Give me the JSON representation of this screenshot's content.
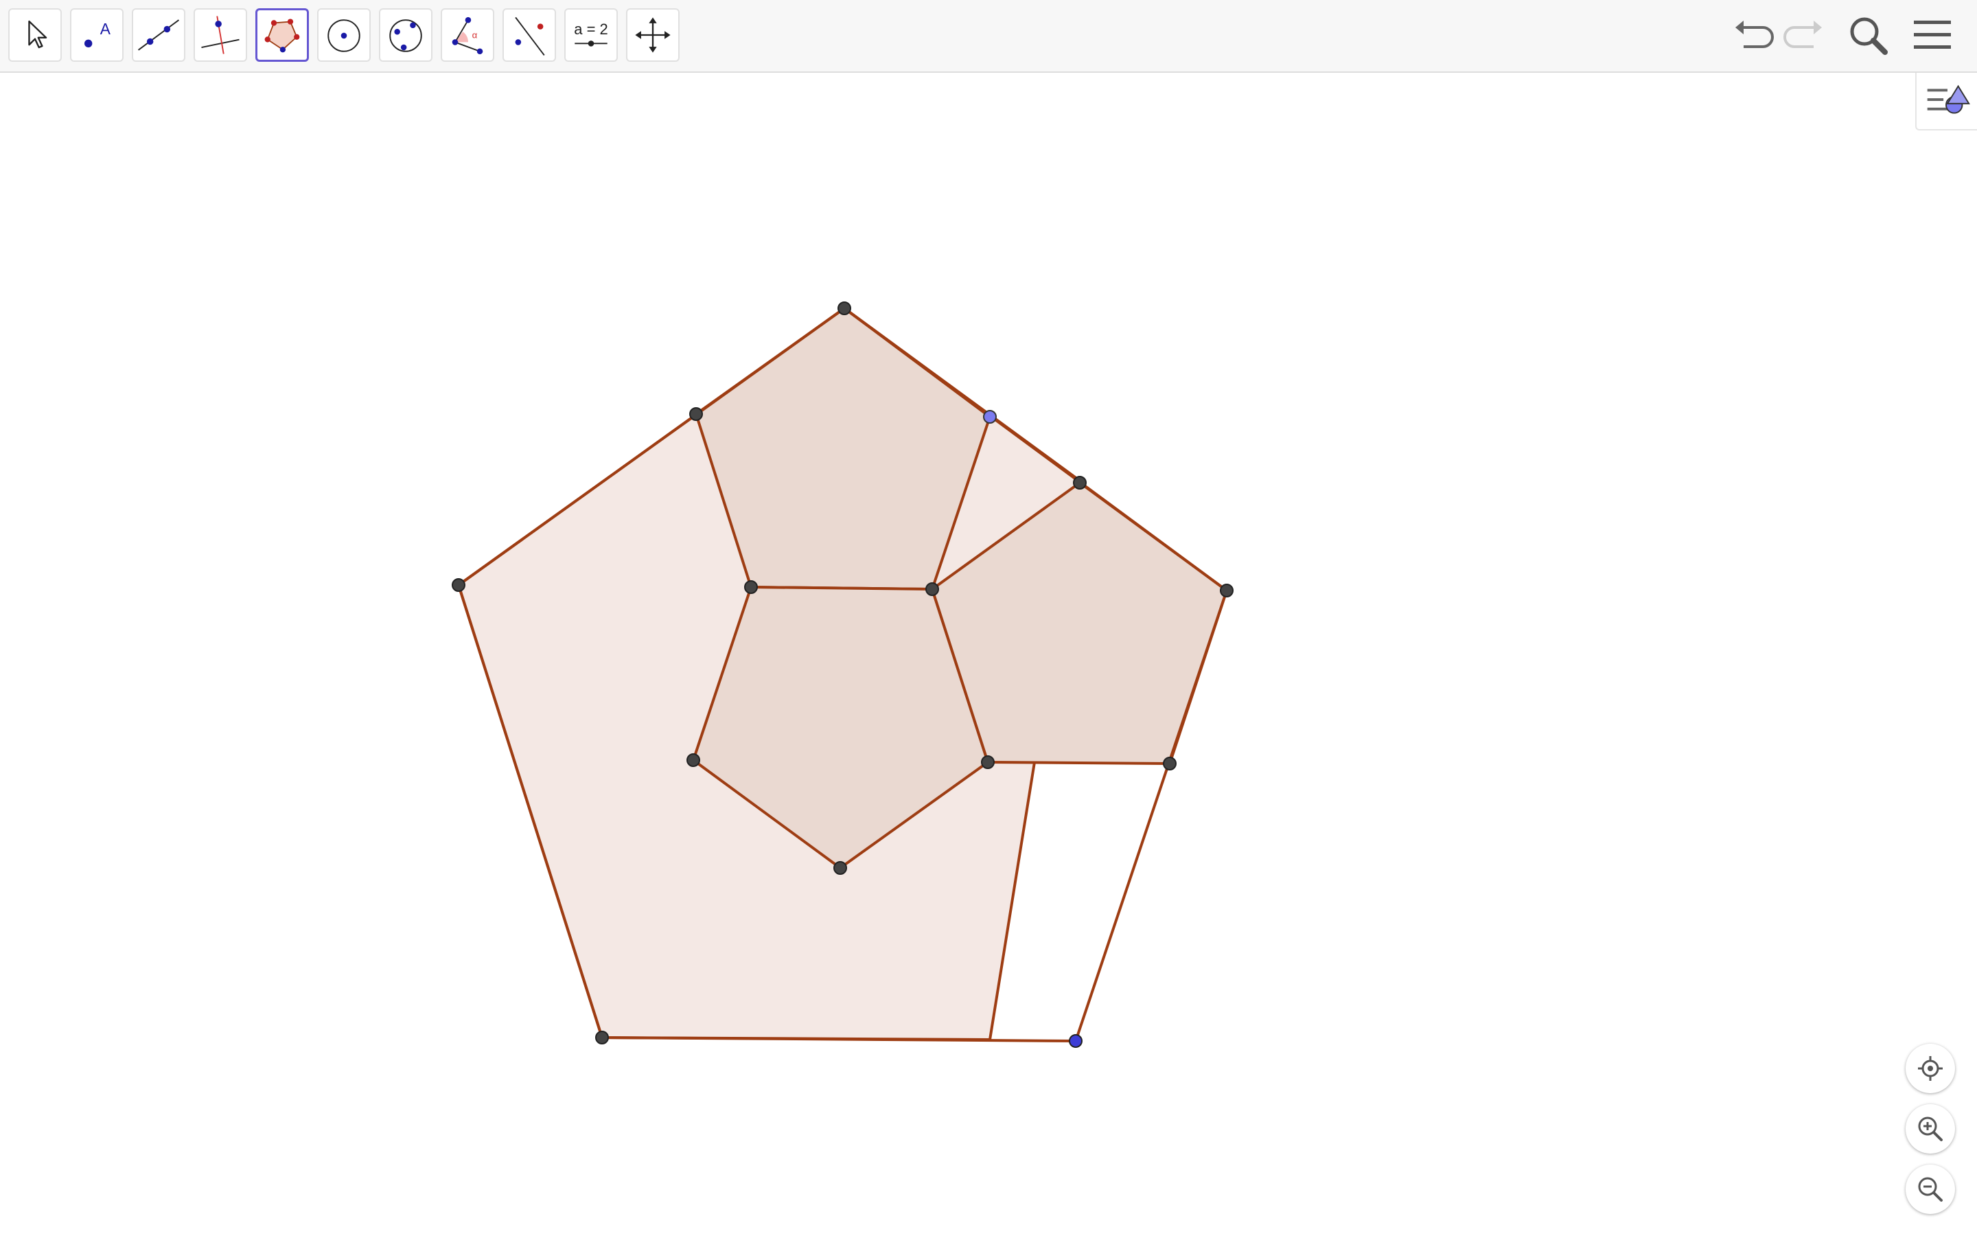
{
  "toolbar": {
    "tools": [
      {
        "id": "move",
        "icon": "arrow-cursor-icon"
      },
      {
        "id": "point",
        "icon": "point-icon",
        "glyph": "A"
      },
      {
        "id": "line",
        "icon": "line-through-two-points-icon"
      },
      {
        "id": "perpendicular",
        "icon": "perpendicular-line-icon"
      },
      {
        "id": "polygon",
        "icon": "polygon-icon",
        "active": true
      },
      {
        "id": "circle",
        "icon": "circle-center-point-icon"
      },
      {
        "id": "circle-three-points",
        "icon": "circle-through-three-points-icon"
      },
      {
        "id": "angle",
        "icon": "angle-icon",
        "glyph": "α"
      },
      {
        "id": "reflect",
        "icon": "reflect-about-line-icon"
      },
      {
        "id": "slider",
        "icon": "slider-icon",
        "label": "a = 2"
      },
      {
        "id": "move-view",
        "icon": "move-graphics-view-icon"
      }
    ],
    "right": [
      "undo-icon",
      "redo-icon",
      "search-icon",
      "menu-icon"
    ]
  },
  "side": {
    "algebra_toggle_icon": "algebra-view-toggle-icon"
  },
  "nav": [
    "standard-view-icon",
    "zoom-in-icon",
    "zoom-out-icon"
  ],
  "colors": {
    "stroke": "#9e3d13",
    "outer_fill": "#f4e8e4",
    "inner_fill": "#ead9d1",
    "point": "#444444",
    "free_point": "#7b7bf0",
    "free_point_dark": "#3d3dd6",
    "accent": "#6557d2"
  }
}
